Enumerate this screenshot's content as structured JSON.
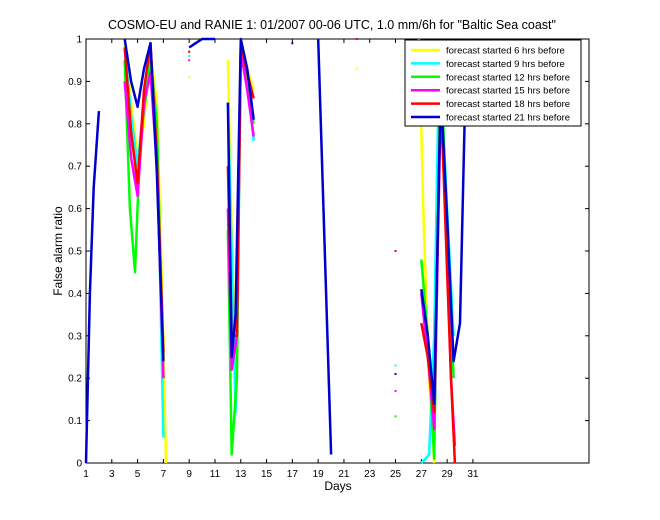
{
  "chart_data": {
    "type": "line",
    "title": "COSMO-EU and RANIE 1: 01/2007 00-06 UTC, 1.0 mm/6h for \"Baltic Sea coast\"",
    "xlabel": "Days",
    "ylabel": "False alarm ratio",
    "xlim": [
      1,
      40
    ],
    "ylim": [
      0,
      1
    ],
    "xticks": [
      1,
      3,
      5,
      7,
      9,
      11,
      13,
      15,
      17,
      19,
      21,
      23,
      25,
      27,
      29,
      31
    ],
    "yticks": [
      0,
      0.1,
      0.2,
      0.3,
      0.4,
      0.5,
      0.6,
      0.7,
      0.8,
      0.9,
      1
    ],
    "ytick_labels": [
      "0",
      "0.1",
      "0.2",
      "0.3",
      "0.4",
      "0.5",
      "0.6",
      "0.7",
      "0.8",
      "0.9",
      "1"
    ],
    "legend_position": "top-right",
    "grid": false,
    "series": [
      {
        "name": "forecast started 6 hrs before",
        "color": "#ffff00",
        "segments": [
          [
            [
              4,
              0.99
            ],
            [
              4.5,
              0.85
            ],
            [
              5,
              0.72
            ],
            [
              5.5,
              0.8
            ],
            [
              6,
              0.97
            ],
            [
              6.5,
              0.85
            ],
            [
              7,
              0.3
            ],
            [
              7.2,
              0.0
            ]
          ],
          [
            [
              12,
              0.95
            ],
            [
              12.3,
              0.55
            ],
            [
              12.6,
              0.2
            ],
            [
              13,
              1.0
            ],
            [
              13.5,
              0.93
            ],
            [
              14,
              0.88
            ]
          ],
          [
            [
              26.8,
              1.0
            ],
            [
              27.2,
              0.55
            ],
            [
              27.6,
              0.2
            ],
            [
              28,
              0.0
            ]
          ]
        ],
        "points": [
          [
            9,
            0.91
          ],
          [
            22,
            0.93
          ]
        ]
      },
      {
        "name": "forecast started 9 hrs before",
        "color": "#00ffff",
        "segments": [
          [
            [
              4,
              0.98
            ],
            [
              4.5,
              0.82
            ],
            [
              5,
              0.7
            ],
            [
              5.5,
              0.85
            ],
            [
              6,
              0.96
            ],
            [
              6.5,
              0.8
            ],
            [
              7,
              0.06
            ]
          ],
          [
            [
              12,
              0.85
            ],
            [
              12.3,
              0.5
            ],
            [
              12.6,
              0.12
            ],
            [
              13,
              0.98
            ],
            [
              13.5,
              0.9
            ],
            [
              14,
              0.76
            ]
          ],
          [
            [
              27,
              0.0
            ],
            [
              27.3,
              0.01
            ],
            [
              27.6,
              0.02
            ],
            [
              28,
              0.3
            ],
            [
              28.4,
              0.99
            ],
            [
              29,
              0.6
            ],
            [
              29.5,
              0.3
            ]
          ]
        ],
        "points": [
          [
            9,
            0.96
          ],
          [
            25,
            0.23
          ]
        ]
      },
      {
        "name": "forecast started 12 hrs before",
        "color": "#00ff00",
        "segments": [
          [
            [
              4,
              0.95
            ],
            [
              4.4,
              0.6
            ],
            [
              4.8,
              0.45
            ],
            [
              5.2,
              0.76
            ],
            [
              6,
              0.95
            ],
            [
              6.5,
              0.8
            ],
            [
              7,
              0.2
            ]
          ],
          [
            [
              12,
              0.55
            ],
            [
              12.3,
              0.02
            ],
            [
              12.7,
              0.2
            ],
            [
              13,
              0.99
            ],
            [
              13.5,
              0.9
            ],
            [
              14,
              0.8
            ]
          ],
          [
            [
              27,
              0.48
            ],
            [
              27.5,
              0.3
            ],
            [
              28,
              0.01
            ],
            [
              28.5,
              0.96
            ],
            [
              29,
              0.55
            ],
            [
              29.5,
              0.2
            ]
          ]
        ],
        "points": [
          [
            9,
            0.97
          ],
          [
            25,
            0.11
          ]
        ]
      },
      {
        "name": "forecast started 15 hrs before",
        "color": "#ff00ff",
        "segments": [
          [
            [
              4,
              0.9
            ],
            [
              4.5,
              0.72
            ],
            [
              5,
              0.63
            ],
            [
              5.5,
              0.85
            ],
            [
              6,
              0.92
            ],
            [
              6.5,
              0.7
            ],
            [
              7,
              0.2
            ]
          ],
          [
            [
              12,
              0.6
            ],
            [
              12.3,
              0.22
            ],
            [
              12.7,
              0.3
            ],
            [
              13,
              0.97
            ],
            [
              13.5,
              0.88
            ],
            [
              14,
              0.77
            ]
          ],
          [
            [
              27,
              0.4
            ],
            [
              27.5,
              0.25
            ],
            [
              28,
              0.08
            ],
            [
              28.5,
              0.85
            ],
            [
              29,
              0.5
            ],
            [
              29.3,
              0.2
            ],
            [
              29.6,
              0.04
            ]
          ]
        ],
        "points": [
          [
            9,
            0.95
          ],
          [
            25,
            0.17
          ]
        ]
      },
      {
        "name": "forecast started 18 hrs before",
        "color": "#ff0000",
        "segments": [
          [
            [
              4,
              0.98
            ],
            [
              4.5,
              0.78
            ],
            [
              5,
              0.66
            ],
            [
              5.5,
              0.88
            ],
            [
              6,
              0.99
            ],
            [
              6.5,
              0.72
            ],
            [
              7,
              0.26
            ]
          ],
          [
            [
              12,
              0.7
            ],
            [
              12.3,
              0.3
            ],
            [
              12.7,
              0.3
            ],
            [
              13,
              0.99
            ],
            [
              13.5,
              0.92
            ],
            [
              14,
              0.86
            ]
          ],
          [
            [
              27,
              0.33
            ],
            [
              27.5,
              0.25
            ],
            [
              28,
              0.12
            ],
            [
              28.5,
              0.88
            ],
            [
              29,
              0.45
            ],
            [
              29.3,
              0.2
            ],
            [
              29.6,
              0.0
            ]
          ]
        ],
        "points": [
          [
            9,
            0.97
          ],
          [
            25,
            0.5
          ],
          [
            22,
            1.0
          ]
        ]
      },
      {
        "name": "forecast started 21 hrs before",
        "color": "#0000cc",
        "segments": [
          [
            [
              1,
              0.0
            ],
            [
              1.3,
              0.4
            ],
            [
              1.6,
              0.65
            ],
            [
              2,
              0.83
            ]
          ],
          [
            [
              4,
              1.0
            ],
            [
              4.5,
              0.9
            ],
            [
              5,
              0.84
            ],
            [
              5.5,
              0.93
            ],
            [
              6,
              0.99
            ],
            [
              6.5,
              0.68
            ],
            [
              7,
              0.24
            ]
          ],
          [
            [
              9,
              0.98
            ],
            [
              9.5,
              0.99
            ],
            [
              10,
              1.0
            ],
            [
              11,
              1.0
            ]
          ],
          [
            [
              12,
              0.85
            ],
            [
              12.3,
              0.25
            ],
            [
              12.6,
              0.35
            ],
            [
              13,
              1.0
            ],
            [
              13.5,
              0.93
            ],
            [
              14,
              0.81
            ]
          ],
          [
            [
              19,
              1.0
            ],
            [
              20,
              0.02
            ]
          ],
          [
            [
              27,
              0.41
            ],
            [
              27.5,
              0.3
            ],
            [
              28,
              0.14
            ],
            [
              28.5,
              0.88
            ],
            [
              29,
              0.58
            ],
            [
              29.5,
              0.24
            ],
            [
              30,
              0.33
            ],
            [
              30.5,
              1.0
            ]
          ]
        ],
        "points": [
          [
            17,
            0.99
          ],
          [
            25,
            0.21
          ]
        ]
      }
    ]
  }
}
